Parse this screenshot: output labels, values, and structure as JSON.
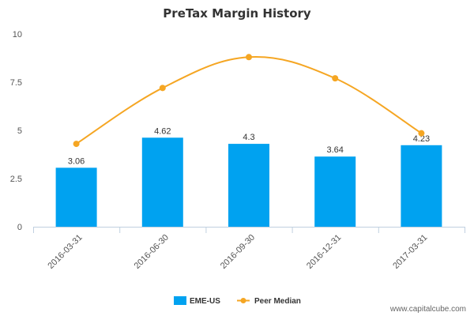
{
  "chart_data": {
    "type": "bar",
    "title": "PreTax Margin History",
    "categories": [
      "2016-03-31",
      "2016-06-30",
      "2016-09-30",
      "2016-12-31",
      "2017-03-31"
    ],
    "series": [
      {
        "name": "EME-US",
        "type": "bar",
        "color": "#00a2f0",
        "values": [
          3.06,
          4.62,
          4.3,
          3.64,
          4.23
        ],
        "labels": [
          "3.06",
          "4.62",
          "4.3",
          "3.64",
          "4.23"
        ]
      },
      {
        "name": "Peer Median",
        "type": "line",
        "color": "#f5a623",
        "values": [
          4.3,
          7.2,
          8.8,
          7.7,
          4.85
        ]
      }
    ],
    "ylim": [
      0,
      10
    ],
    "yticks": [
      0,
      2.5,
      5,
      7.5,
      10
    ],
    "ytick_labels": [
      "0",
      "2.5",
      "5",
      "7.5",
      "10"
    ],
    "grid": false,
    "legend": "bottom-center"
  },
  "footer": {
    "source": "www.capitalcube.com"
  }
}
